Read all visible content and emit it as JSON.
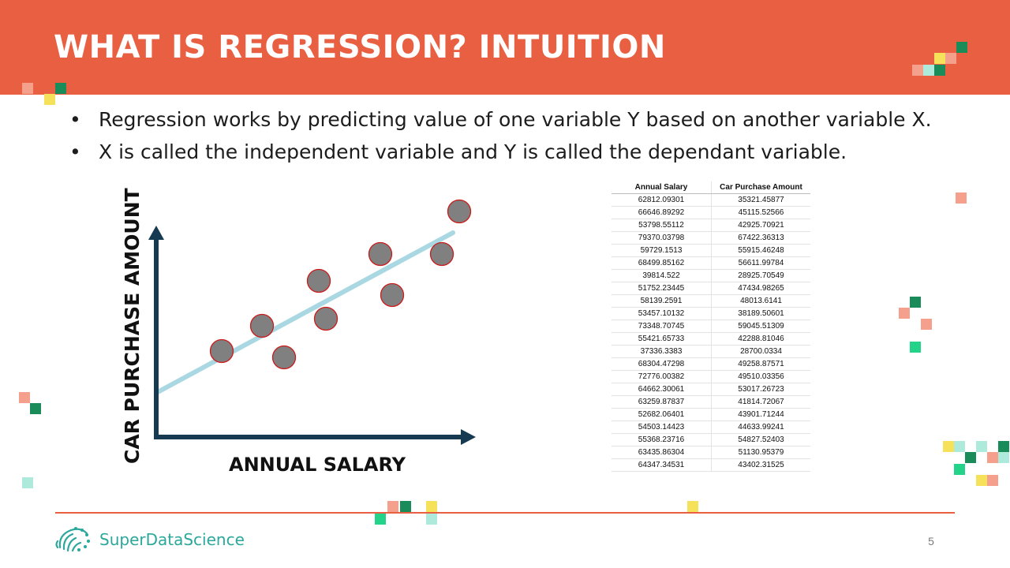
{
  "slide": {
    "title": "WHAT IS REGRESSION? INTUITION",
    "page_number": "5"
  },
  "bullets": [
    {
      "marker": "•",
      "text": "Regression works by predicting value of one variable Y based on another variable X."
    },
    {
      "marker": "•",
      "text": "X is called the independent variable and Y is called the dependant variable."
    }
  ],
  "diagram": {
    "y_axis_label": "CAR PURCHASE AMOUNT",
    "x_axis_label": "ANNUAL SALARY",
    "point_color": "#808080",
    "point_outline": "#cc1b1b",
    "line_color": "#a9d8e3",
    "axis_color": "#163a52"
  },
  "table": {
    "headers": [
      "Annual Salary",
      "Car Purchase Amount"
    ],
    "rows": [
      [
        "62812.09301",
        "35321.45877"
      ],
      [
        "66646.89292",
        "45115.52566"
      ],
      [
        "53798.55112",
        "42925.70921"
      ],
      [
        "79370.03798",
        "67422.36313"
      ],
      [
        "59729.1513",
        "55915.46248"
      ],
      [
        "68499.85162",
        "56611.99784"
      ],
      [
        "39814.522",
        "28925.70549"
      ],
      [
        "51752.23445",
        "47434.98265"
      ],
      [
        "58139.2591",
        "48013.6141"
      ],
      [
        "53457.10132",
        "38189.50601"
      ],
      [
        "73348.70745",
        "59045.51309"
      ],
      [
        "55421.65733",
        "42288.81046"
      ],
      [
        "37336.3383",
        "28700.0334"
      ],
      [
        "68304.47298",
        "49258.87571"
      ],
      [
        "72776.00382",
        "49510.03356"
      ],
      [
        "64662.30061",
        "53017.26723"
      ],
      [
        "63259.87837",
        "41814.72067"
      ],
      [
        "52682.06401",
        "43901.71244"
      ],
      [
        "54503.14423",
        "44633.99241"
      ],
      [
        "55368.23716",
        "54827.52403"
      ],
      [
        "63435.86304",
        "51130.95379"
      ],
      [
        "64347.34531",
        "43402.31525"
      ]
    ]
  },
  "footer": {
    "brand": "SuperDataScience"
  },
  "colors": {
    "accent": "#e95f42",
    "salmon": "#f4a08d",
    "green": "#1a8c5a",
    "mint": "#aeeadb",
    "bright_green": "#23d38a",
    "yellow": "#f5e15a",
    "teal": "#2ba89b"
  }
}
